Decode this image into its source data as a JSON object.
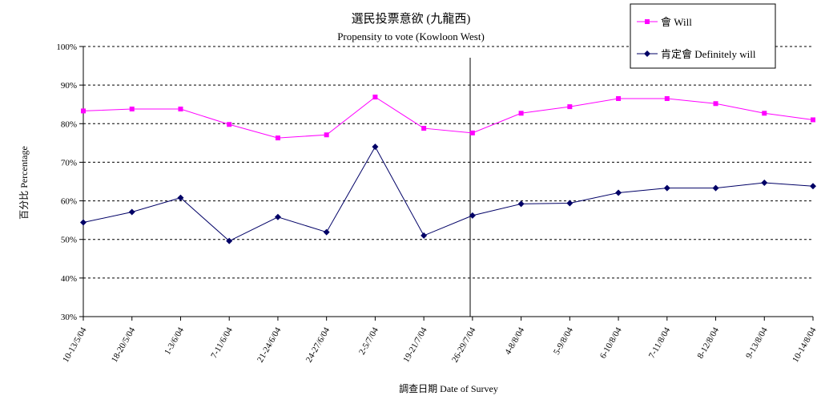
{
  "chart_data": {
    "type": "line",
    "title": "選民投票意欲 (九龍西)",
    "subtitle": "Propensity to vote (Kowloon West)",
    "xlabel": "調查日期 Date of Survey",
    "ylabel": "百分比 Percentage",
    "ylim": [
      30,
      100
    ],
    "yticks": [
      "30%",
      "40%",
      "50%",
      "60%",
      "70%",
      "80%",
      "90%",
      "100%"
    ],
    "grid": "horizontal-dashed",
    "legend_position": "top-right",
    "categories": [
      "10-13/5/04",
      "18-20/5/04",
      "1-3/6/04",
      "7-11/6/04",
      "21-24/6/04",
      "24-27/6/04",
      "2-5/7/04",
      "19-21/7/04",
      "26-29/7/04",
      "4-8/8/04",
      "5-9/8/04",
      "6-10/8/04",
      "7-11/8/04",
      "8-12/8/04",
      "9-13/8/04",
      "10-14/8/04"
    ],
    "series": [
      {
        "name": "會 Will",
        "color": "#ff00ff",
        "marker": "square",
        "values": [
          83.3,
          83.8,
          83.8,
          79.8,
          76.3,
          77.1,
          86.9,
          78.8,
          77.6,
          82.7,
          84.4,
          86.5,
          86.5,
          85.2,
          82.7,
          81.0
        ]
      },
      {
        "name": "肯定會 Definitely will",
        "color": "#000066",
        "marker": "diamond",
        "values": [
          54.4,
          57.1,
          60.8,
          49.6,
          55.8,
          51.9,
          74.0,
          51.0,
          56.2,
          59.2,
          59.4,
          62.1,
          63.3,
          63.3,
          64.7,
          63.8
        ]
      }
    ]
  }
}
